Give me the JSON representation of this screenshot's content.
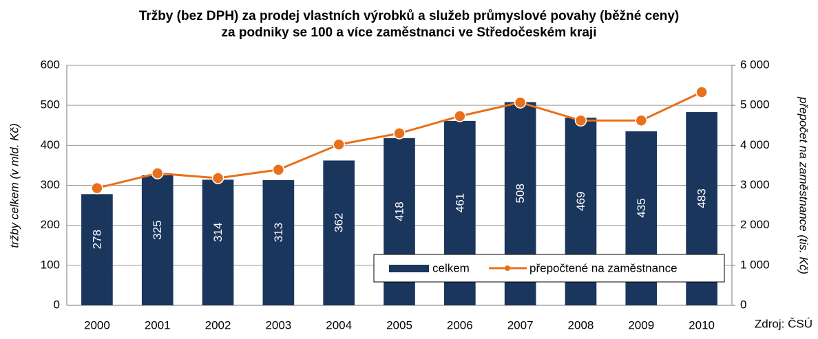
{
  "chart_data": {
    "type": "bar",
    "title": [
      "Tržby (bez DPH) za prodej vlastních výrobků a služeb průmyslové povahy (běžné ceny)",
      "za podniky se 100 a více zaměstnanci ve Středočeském kraji"
    ],
    "ylabel": "tržby celkem (v mld. Kč)",
    "y2label": "přepočet na zaměstnance (tis. Kč)",
    "source": "Zdroj: ČSÚ",
    "categories": [
      "2000",
      "2001",
      "2002",
      "2003",
      "2004",
      "2005",
      "2006",
      "2007",
      "2008",
      "2009",
      "2010"
    ],
    "series": [
      {
        "name": "celkem",
        "type": "bar",
        "color": "#1b365d",
        "values": [
          278,
          325,
          314,
          313,
          362,
          418,
          461,
          508,
          469,
          435,
          483
        ]
      },
      {
        "name": "přepočtené na zaměstnance",
        "type": "line",
        "axis": "y2",
        "color": "#e8701a",
        "values": [
          2930,
          3300,
          3180,
          3390,
          4020,
          4300,
          4730,
          5070,
          4620,
          4620,
          5330
        ]
      }
    ],
    "ylim": [
      0,
      600
    ],
    "yticks": [
      0,
      100,
      200,
      300,
      400,
      500,
      600
    ],
    "y2lim": [
      0,
      6000
    ],
    "y2ticks": [
      0,
      {
        "value": 1000,
        "label": "1 000"
      },
      {
        "value": 2000,
        "label": "2 000"
      },
      {
        "value": 3000,
        "label": "3 000"
      },
      {
        "value": 4000,
        "label": "4 000"
      },
      {
        "value": 5000,
        "label": "5 000"
      },
      {
        "value": 6000,
        "label": "6 000"
      }
    ],
    "grid": true,
    "legend": "lower right"
  }
}
